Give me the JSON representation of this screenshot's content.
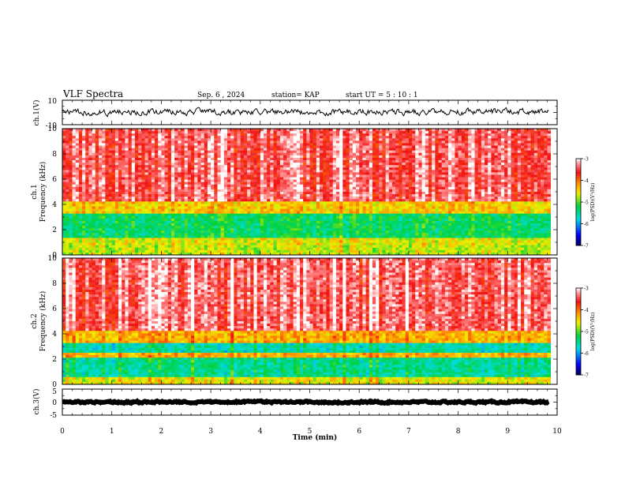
{
  "header": {
    "title": "VLF Spectra",
    "date": "Sep. 6 , 2024",
    "station": "station= KAP",
    "start": "start UT = 5 : 10 : 1"
  },
  "chart_data": [
    {
      "type": "line",
      "name": "ch1-waveform",
      "ylabel": "ch.1(V)",
      "xlim": [
        0,
        10
      ],
      "ylim": [
        -10,
        10
      ],
      "yticks": [
        "10",
        "-10"
      ],
      "x_end": 9.83,
      "level": 0.5,
      "amplitude": 4.5
    },
    {
      "type": "heatmap",
      "name": "ch1-spectrogram",
      "ylabel": "ch.1\nFrequency (kHz)",
      "xlim": [
        0,
        10
      ],
      "ylim": [
        0,
        10
      ],
      "yticks": [
        "0",
        "2",
        "4",
        "6",
        "8",
        "10"
      ],
      "colorbar": {
        "label": "log(PSD)(V²/Hz)",
        "range": [
          -7,
          -3
        ],
        "ticks": [
          "-3",
          "-4",
          "-5",
          "-6",
          "-7"
        ]
      },
      "bands": [
        {
          "from": 0,
          "to": 0.8,
          "level": -4.7
        },
        {
          "from": 0.8,
          "to": 1.4,
          "level": -4.6
        },
        {
          "from": 1.4,
          "to": 3.3,
          "level": -5.3
        },
        {
          "from": 3.3,
          "to": 4.3,
          "level": -4.4
        },
        {
          "from": 4.3,
          "to": 10,
          "level": -3.4
        }
      ]
    },
    {
      "type": "heatmap",
      "name": "ch2-spectrogram",
      "ylabel": "ch.2\nFrequency (kHz)",
      "xlim": [
        0,
        10
      ],
      "ylim": [
        0,
        10
      ],
      "yticks": [
        "0",
        "2",
        "4",
        "6",
        "8",
        "10"
      ],
      "colorbar": {
        "label": "log(PSD)(V²/Hz)",
        "range": [
          -7,
          -3
        ],
        "ticks": [
          "-3",
          "-4",
          "-5",
          "-6",
          "-7"
        ]
      },
      "bands": [
        {
          "from": 0,
          "to": 0.6,
          "level": -4.6
        },
        {
          "from": 0.6,
          "to": 2.1,
          "level": -5.5
        },
        {
          "from": 2.1,
          "to": 2.5,
          "level": -4.3
        },
        {
          "from": 2.5,
          "to": 3.2,
          "level": -5.6
        },
        {
          "from": 3.2,
          "to": 4.2,
          "level": -4.3
        },
        {
          "from": 4.2,
          "to": 10,
          "level": -3.4
        }
      ]
    },
    {
      "type": "line",
      "name": "ch3-waveform",
      "ylabel": "ch.3(V)",
      "xlim": [
        0,
        10
      ],
      "ylim": [
        -5,
        5
      ],
      "yticks": [
        "5",
        "0",
        "-5"
      ],
      "x_end": 9.83,
      "level": 0.0,
      "amplitude": 0.6
    }
  ],
  "xaxis": {
    "label": "Time (min)",
    "ticks": [
      "0",
      "1",
      "2",
      "3",
      "4",
      "5",
      "6",
      "7",
      "8",
      "9",
      "10"
    ]
  }
}
